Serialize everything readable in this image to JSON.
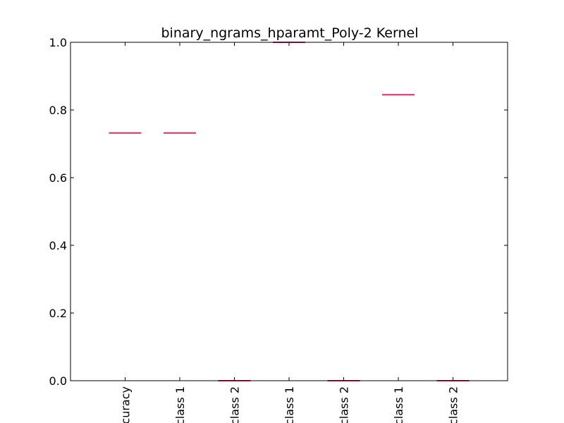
{
  "chart_data": {
    "type": "box",
    "title": "binary_ngrams_hparamt_Poly-2 Kernel",
    "xlabel": "",
    "ylabel": "",
    "ylim": [
      0,
      1.0
    ],
    "yticks": [
      0.0,
      0.2,
      0.4,
      0.6,
      0.8,
      1.0
    ],
    "ytick_labels": [
      "0.0",
      "0.2",
      "0.4",
      "0.6",
      "0.8",
      "1.0"
    ],
    "categories": [
      "curacy",
      "class 1",
      "class 2",
      "class 1",
      "class 2",
      "class 1",
      "class 2"
    ],
    "values": [
      0.732,
      0.732,
      0.0,
      1.0,
      0.0,
      0.845,
      0.0
    ],
    "grid": false,
    "median_color": "#c0306a",
    "box_color": "#5b3a8c"
  }
}
